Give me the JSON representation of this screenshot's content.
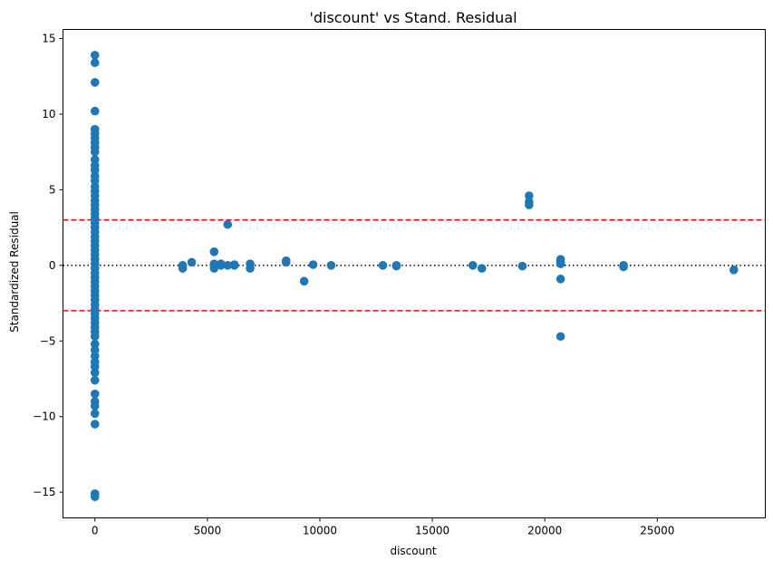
{
  "colors": {
    "points": "#1f77b4",
    "threshold_lines": "#ff0000",
    "zero_line": "#000000",
    "axes": "#000000",
    "background": "#ffffff"
  },
  "chart_data": {
    "type": "scatter",
    "title": "'discount' vs Stand. Residual",
    "xlabel": "discount",
    "ylabel": "Standardized Residual",
    "xlim": [
      -1420,
      29800
    ],
    "ylim": [
      -16.7,
      15.6
    ],
    "xticks": [
      0,
      5000,
      10000,
      15000,
      20000,
      25000
    ],
    "xtick_labels": [
      "0",
      "5000",
      "10000",
      "15000",
      "20000",
      "25000"
    ],
    "yticks": [
      -15,
      -10,
      -5,
      0,
      5,
      10,
      15
    ],
    "ytick_labels": [
      "−15",
      "−10",
      "−5",
      "0",
      "5",
      "10",
      "15"
    ],
    "grid": false,
    "reference_lines": [
      {
        "y": 3,
        "style": "dashed",
        "color": "#ff0000"
      },
      {
        "y": -3,
        "style": "dashed",
        "color": "#ff0000"
      },
      {
        "y": 0,
        "style": "dotted",
        "color": "#000000"
      }
    ],
    "points": [
      {
        "x": 0,
        "y": 13.9
      },
      {
        "x": 0,
        "y": 13.4
      },
      {
        "x": 0,
        "y": 12.1
      },
      {
        "x": 0,
        "y": 10.2
      },
      {
        "x": 0,
        "y": 9.0
      },
      {
        "x": 0,
        "y": 8.7
      },
      {
        "x": 0,
        "y": 8.4
      },
      {
        "x": 0,
        "y": 8.1
      },
      {
        "x": 0,
        "y": 7.8
      },
      {
        "x": 0,
        "y": 7.5
      },
      {
        "x": 0,
        "y": 7.0
      },
      {
        "x": 0,
        "y": 6.6
      },
      {
        "x": 0,
        "y": 6.3
      },
      {
        "x": 0,
        "y": 5.9
      },
      {
        "x": 0,
        "y": 5.6
      },
      {
        "x": 0,
        "y": 5.2
      },
      {
        "x": 0,
        "y": 4.9
      },
      {
        "x": 0,
        "y": 4.6
      },
      {
        "x": 0,
        "y": 4.3
      },
      {
        "x": 0,
        "y": 4.0
      },
      {
        "x": 0,
        "y": 3.7
      },
      {
        "x": 0,
        "y": 3.4
      },
      {
        "x": 0,
        "y": 3.1
      },
      {
        "x": 0,
        "y": 2.8
      },
      {
        "x": 0,
        "y": 2.5
      },
      {
        "x": 0,
        "y": 2.2
      },
      {
        "x": 0,
        "y": 1.9
      },
      {
        "x": 0,
        "y": 1.6
      },
      {
        "x": 0,
        "y": 1.3
      },
      {
        "x": 0,
        "y": 1.0
      },
      {
        "x": 0,
        "y": 0.7
      },
      {
        "x": 0,
        "y": 0.4
      },
      {
        "x": 0,
        "y": 0.1
      },
      {
        "x": 0,
        "y": -0.2
      },
      {
        "x": 0,
        "y": -0.5
      },
      {
        "x": 0,
        "y": -0.8
      },
      {
        "x": 0,
        "y": -1.1
      },
      {
        "x": 0,
        "y": -1.4
      },
      {
        "x": 0,
        "y": -1.7
      },
      {
        "x": 0,
        "y": -2.0
      },
      {
        "x": 0,
        "y": -2.3
      },
      {
        "x": 0,
        "y": -2.6
      },
      {
        "x": 0,
        "y": -2.9
      },
      {
        "x": 0,
        "y": -3.2
      },
      {
        "x": 0,
        "y": -3.5
      },
      {
        "x": 0,
        "y": -3.8
      },
      {
        "x": 0,
        "y": -4.1
      },
      {
        "x": 0,
        "y": -4.4
      },
      {
        "x": 0,
        "y": -4.7
      },
      {
        "x": 0,
        "y": -5.2
      },
      {
        "x": 0,
        "y": -5.6
      },
      {
        "x": 0,
        "y": -6.0
      },
      {
        "x": 0,
        "y": -6.4
      },
      {
        "x": 0,
        "y": -6.7
      },
      {
        "x": 0,
        "y": -7.1
      },
      {
        "x": 0,
        "y": -7.6
      },
      {
        "x": 0,
        "y": -8.5
      },
      {
        "x": 0,
        "y": -9.0
      },
      {
        "x": 0,
        "y": -9.3
      },
      {
        "x": 0,
        "y": -9.8
      },
      {
        "x": 0,
        "y": -10.5
      },
      {
        "x": 0,
        "y": -15.1
      },
      {
        "x": 0,
        "y": -15.3
      },
      {
        "x": 3900,
        "y": 0.0
      },
      {
        "x": 3900,
        "y": -0.2
      },
      {
        "x": 4300,
        "y": 0.2
      },
      {
        "x": 5300,
        "y": 0.9
      },
      {
        "x": 5300,
        "y": 0.1
      },
      {
        "x": 5300,
        "y": -0.2
      },
      {
        "x": 5600,
        "y": 0.1
      },
      {
        "x": 5600,
        "y": 0.0
      },
      {
        "x": 5900,
        "y": 2.7
      },
      {
        "x": 5900,
        "y": 0.0
      },
      {
        "x": 6200,
        "y": 0.0
      },
      {
        "x": 6200,
        "y": 0.05
      },
      {
        "x": 6900,
        "y": 0.1
      },
      {
        "x": 6900,
        "y": -0.2
      },
      {
        "x": 8500,
        "y": 0.3
      },
      {
        "x": 8500,
        "y": 0.2
      },
      {
        "x": 9300,
        "y": -1.05
      },
      {
        "x": 9700,
        "y": 0.05
      },
      {
        "x": 10500,
        "y": 0.0
      },
      {
        "x": 12800,
        "y": 0.0
      },
      {
        "x": 13400,
        "y": 0.0
      },
      {
        "x": 13400,
        "y": -0.05
      },
      {
        "x": 16800,
        "y": 0.0
      },
      {
        "x": 17200,
        "y": -0.2
      },
      {
        "x": 19000,
        "y": -0.05
      },
      {
        "x": 19300,
        "y": 4.6
      },
      {
        "x": 19300,
        "y": 4.2
      },
      {
        "x": 19300,
        "y": 4.0
      },
      {
        "x": 20700,
        "y": 0.4
      },
      {
        "x": 20700,
        "y": 0.2
      },
      {
        "x": 20700,
        "y": 0.1
      },
      {
        "x": 20700,
        "y": -0.9
      },
      {
        "x": 20700,
        "y": -4.7
      },
      {
        "x": 23500,
        "y": 0.0
      },
      {
        "x": 23500,
        "y": -0.1
      },
      {
        "x": 28400,
        "y": -0.3
      }
    ]
  }
}
